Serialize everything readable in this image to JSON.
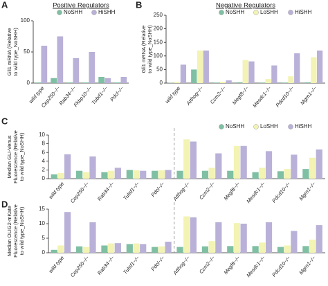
{
  "chart_data": [
    {
      "type": "bar",
      "panel": "A",
      "title": "Positive Regulators",
      "ylabel": [
        "Gli1 mRNA (Relative",
        "to wild type_NoSHH)"
      ],
      "categories": [
        "wild type",
        "Cep250−/−",
        "Rab34−/−",
        "Fkbp10−/−",
        "Tubd1−/−",
        "Pdcl−/−"
      ],
      "series": [
        {
          "name": "NoSHH",
          "color": "#7fbfa3",
          "values": [
            1,
            8,
            1,
            1,
            10,
            1
          ]
        },
        {
          "name": "HiSHH",
          "color": "#b9b1d8",
          "values": [
            60,
            75,
            40,
            50,
            8,
            10
          ]
        }
      ],
      "ylim": [
        0,
        100
      ],
      "yticks": [
        0,
        50,
        100
      ]
    },
    {
      "type": "bar",
      "panel": "B",
      "title": "Negative Regulators",
      "ylabel": [
        "Gli1 mRNA (Relative",
        "to wild type_NoSHH)"
      ],
      "categories": [
        "wild type",
        "Atthog−/−",
        "Ccm2−/−",
        "Megf8−/−",
        "Mesdc1−/−",
        "Pdcd10−/−",
        "Mgrn1−/−"
      ],
      "series": [
        {
          "name": "NoSHH",
          "color": "#7fbfa3",
          "values": [
            1,
            50,
            2,
            3,
            2,
            2,
            3
          ]
        },
        {
          "name": "LoSHH",
          "color": "#f3f3b3",
          "values": [
            5,
            120,
            5,
            85,
            15,
            25,
            95
          ]
        },
        {
          "name": "HiSHH",
          "color": "#b9b1d8",
          "values": [
            68,
            120,
            10,
            80,
            65,
            110,
            120
          ]
        }
      ],
      "ylim": [
        0,
        250
      ],
      "yticks": [
        0,
        50,
        100,
        150,
        200,
        250
      ]
    },
    {
      "type": "bar",
      "panel": "C",
      "ylabel": [
        "Median GLI-Venus",
        "Fluorescence (Relative",
        "to wild type_NoSHH)"
      ],
      "categories": [
        "wild type",
        "Cep250−/−",
        "Rab34−/−",
        "Tubd1−/−",
        "Pdcl−/−",
        "Atthog−/−",
        "Ccm2−/−",
        "Megf8−/−",
        "Mesdc1−/−",
        "Pdcd10−/−",
        "Mgrn1−/−"
      ],
      "series": [
        {
          "name": "NoSHH",
          "color": "#7fbfa3",
          "values": [
            1.0,
            1.8,
            1.5,
            2.0,
            1.8,
            1.8,
            1.8,
            1.8,
            1.5,
            1.7,
            2.2
          ]
        },
        {
          "name": "LoSHH",
          "color": "#f3f3b3",
          "values": [
            1.3,
            1.5,
            1.8,
            1.9,
            1.9,
            9.0,
            2.5,
            7.5,
            2.5,
            2.2,
            4.8
          ]
        },
        {
          "name": "HiSHH",
          "color": "#b9b1d8",
          "values": [
            5.6,
            5.1,
            2.5,
            1.8,
            2.0,
            8.5,
            5.8,
            7.5,
            6.3,
            5.5,
            6.7
          ]
        }
      ],
      "ylim": [
        0,
        10
      ],
      "yticks": [
        0,
        2,
        4,
        6,
        8,
        10
      ]
    },
    {
      "type": "bar",
      "panel": "D",
      "ylabel": [
        "Median OLIG2-mKate",
        "Fluorescence (Relative",
        "to wild type_NoSHH)"
      ],
      "categories": [
        "wild type",
        "Cep250−/−",
        "Rab34−/−",
        "Tubd1−/−",
        "Pdcl−/−",
        "Atthog−/−",
        "Ccm2−/−",
        "Megf8−/−",
        "Mesdc1−/−",
        "Pdcd10−/−",
        "Mgrn1−/−"
      ],
      "series": [
        {
          "name": "NoSHH",
          "color": "#7fbfa3",
          "values": [
            1,
            2.2,
            2.5,
            3.0,
            2.0,
            2.0,
            2.2,
            2.3,
            2.3,
            2.0,
            2.3
          ]
        },
        {
          "name": "LoSHH",
          "color": "#f3f3b3",
          "values": [
            2.5,
            2.0,
            3.2,
            3.2,
            2.2,
            12.5,
            4.0,
            10.2,
            3.5,
            2.5,
            4.5
          ]
        },
        {
          "name": "HiSHH",
          "color": "#b9b1d8",
          "values": [
            14,
            10.5,
            3.3,
            3.0,
            3.8,
            12.2,
            10.5,
            10.0,
            10.5,
            7.5,
            9.5
          ]
        }
      ],
      "ylim": [
        0,
        15
      ],
      "yticks": [
        0,
        5,
        10,
        15
      ]
    }
  ]
}
